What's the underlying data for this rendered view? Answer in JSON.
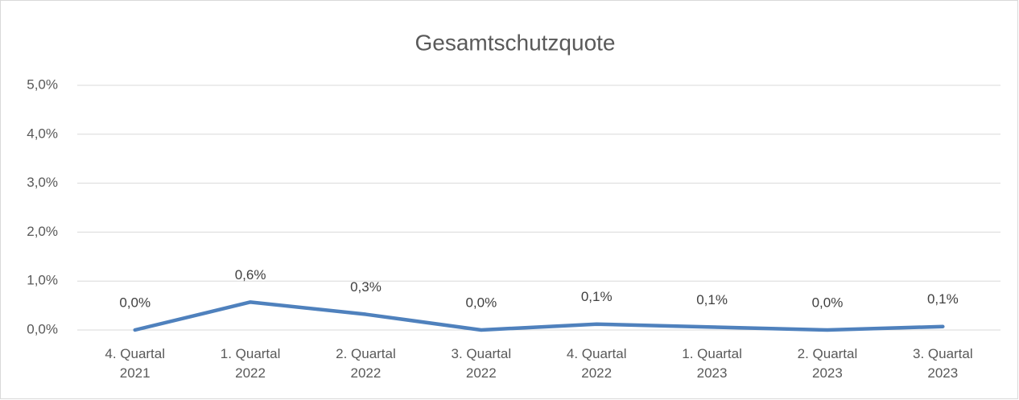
{
  "chart_data": {
    "type": "line",
    "title": "Gesamtschutzquote",
    "categories": [
      "4. Quartal 2021",
      "1. Quartal 2022",
      "2. Quartal 2022",
      "3. Quartal 2022",
      "4. Quartal 2022",
      "1. Quartal 2023",
      "2. Quartal 2023",
      "3. Quartal 2023"
    ],
    "series": [
      {
        "color": "#4f81bd",
        "values": [
          0,
          0.57,
          0.32,
          0,
          0.12,
          0.06,
          0,
          0.07
        ],
        "value_labels": [
          "0,0%",
          "0,6%",
          "0,3%",
          "0,0%",
          "0,1%",
          "0,1%",
          "0,0%",
          "0,1%"
        ]
      }
    ],
    "ylim": [
      0,
      5
    ],
    "yticks": [
      {
        "value": 0,
        "label": "0,0%"
      },
      {
        "value": 1,
        "label": "1,0%"
      },
      {
        "value": 2,
        "label": "2,0%"
      },
      {
        "value": 3,
        "label": "3,0%"
      },
      {
        "value": 4,
        "label": "4,0%"
      },
      {
        "value": 5,
        "label": "5,0%"
      }
    ],
    "grid": true
  }
}
